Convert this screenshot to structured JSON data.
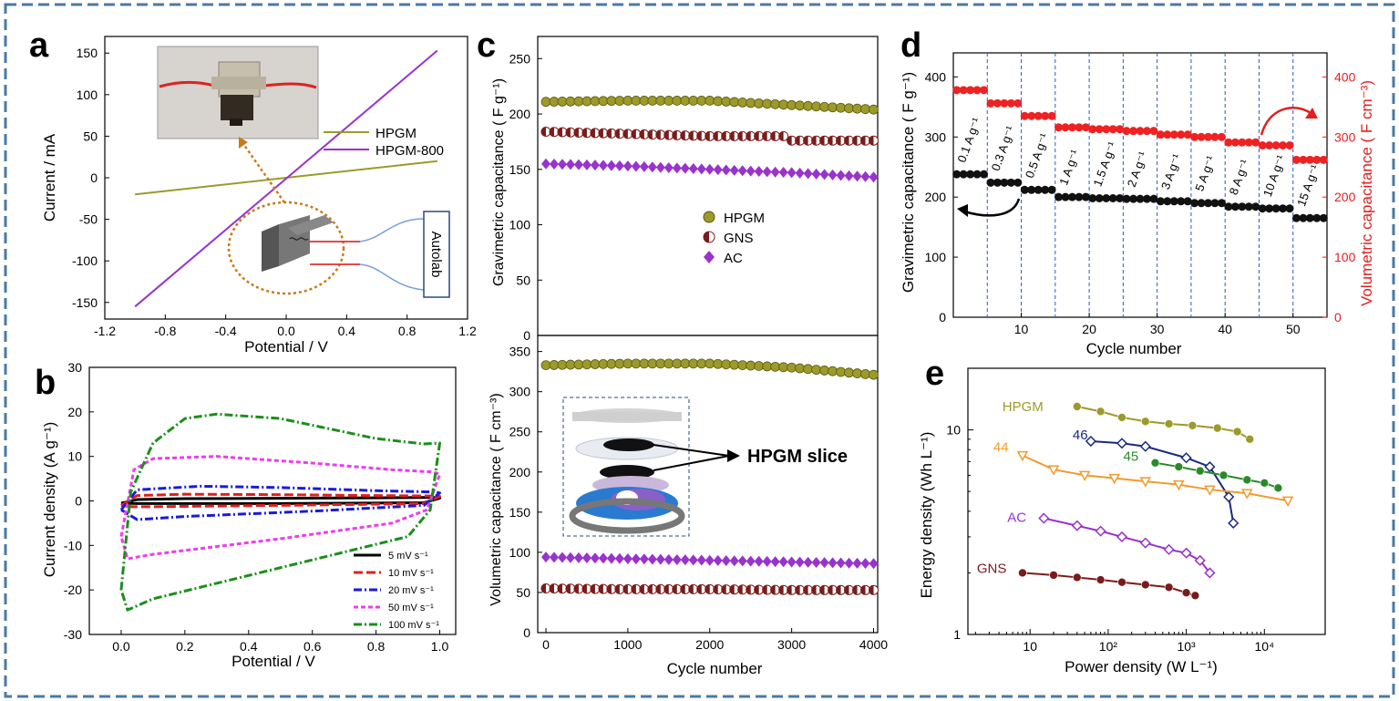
{
  "panel_letters": [
    "a",
    "b",
    "c",
    "d",
    "e"
  ],
  "colors": {
    "frame": "#4a7aa3",
    "olive": "#9c9a2a",
    "purple": "#9933cc",
    "darkred": "#7a1c1c",
    "black": "#000000",
    "red": "#e02020",
    "blue": "#1a1adb",
    "magenta": "#ee3cee",
    "green": "#1a8f1a",
    "navy": "#1a2a7a",
    "orange": "#f19a2e",
    "green_e": "#2a8a2a",
    "brown": "#7a1a1a"
  },
  "panel_a": {
    "photo_description": "photo of a press-cell clip holder with red wires",
    "schematic_label": "Autolab",
    "chart_data": {
      "type": "line",
      "xlabel": "Potential / V",
      "ylabel": "Current / mA",
      "xlim": [
        -1.2,
        1.2
      ],
      "ylim": [
        -170,
        170
      ],
      "xticks": [
        "-1.2",
        "-0.8",
        "-0.4",
        "0.0",
        "0.4",
        "0.8",
        "1.2"
      ],
      "yticks": [
        "-150",
        "-100",
        "-50",
        "0",
        "50",
        "100",
        "150"
      ],
      "legend": [
        "HPGM",
        "HPGM-800"
      ],
      "series": [
        {
          "name": "HPGM",
          "x": [
            -1.0,
            1.0
          ],
          "y": [
            -20,
            20
          ]
        },
        {
          "name": "HPGM-800",
          "x": [
            -1.0,
            1.0
          ],
          "y": [
            -155,
            153
          ]
        }
      ]
    }
  },
  "panel_b": {
    "chart_data": {
      "type": "line",
      "xlabel": "Potential / V",
      "ylabel": "Current density (A g⁻¹)",
      "xlim": [
        -0.1,
        1.05
      ],
      "ylim": [
        -30,
        30
      ],
      "xticks": [
        "0.0",
        "0.2",
        "0.4",
        "0.6",
        "0.8",
        "1.0"
      ],
      "yticks": [
        "-30",
        "-20",
        "-10",
        "0",
        "10",
        "20",
        "30"
      ],
      "legend": [
        "5 mV s⁻¹",
        "10 mV s⁻¹",
        "20 mV s⁻¹",
        "50 mV s⁻¹",
        "100 mV s⁻¹"
      ],
      "series": [
        {
          "name": "5 mV s⁻¹",
          "upper_x": [
            0,
            0.05,
            0.2,
            0.5,
            0.8,
            0.98,
            1.0
          ],
          "upper_y": [
            -0.5,
            0.3,
            0.5,
            0.6,
            0.7,
            0.8,
            0.6
          ],
          "lower_x": [
            1.0,
            0.95,
            0.5,
            0.05,
            0
          ],
          "lower_y": [
            0.6,
            -0.4,
            -0.6,
            -0.6,
            -0.5
          ]
        },
        {
          "name": "10 mV s⁻¹",
          "upper_x": [
            0,
            0.05,
            0.2,
            0.5,
            0.8,
            0.98,
            1.0
          ],
          "upper_y": [
            -1,
            1.2,
            1.5,
            1.4,
            1.2,
            1.1,
            1.0
          ],
          "lower_x": [
            1.0,
            0.95,
            0.5,
            0.1,
            0.02,
            0
          ],
          "lower_y": [
            1.0,
            -0.6,
            -1.0,
            -1.3,
            -1.3,
            -1
          ]
        },
        {
          "name": "20 mV s⁻¹",
          "upper_x": [
            0,
            0.05,
            0.25,
            0.5,
            0.8,
            0.98,
            1.0
          ],
          "upper_y": [
            -2,
            2.5,
            3.3,
            3,
            2.3,
            2,
            1.8
          ],
          "lower_x": [
            1.0,
            0.95,
            0.6,
            0.2,
            0.05,
            0
          ],
          "lower_y": [
            1.8,
            -1,
            -2.3,
            -3.5,
            -4.2,
            -2
          ]
        },
        {
          "name": "50 mV s⁻¹",
          "upper_x": [
            0,
            0.04,
            0.1,
            0.3,
            0.6,
            0.85,
            0.98,
            1.0
          ],
          "upper_y": [
            -8,
            7,
            9.5,
            10,
            8.5,
            7,
            6.5,
            6
          ],
          "lower_x": [
            1.0,
            0.96,
            0.85,
            0.5,
            0.1,
            0.02,
            0
          ],
          "lower_y": [
            6,
            -2,
            -5,
            -8.5,
            -12,
            -13,
            -8
          ]
        },
        {
          "name": "100 mV s⁻¹",
          "upper_x": [
            0,
            0.03,
            0.1,
            0.2,
            0.3,
            0.5,
            0.8,
            0.95,
            1.0
          ],
          "upper_y": [
            -20,
            2,
            13,
            18.5,
            19.5,
            18.5,
            14,
            12.8,
            13
          ],
          "lower_x": [
            1.0,
            0.97,
            0.9,
            0.5,
            0.1,
            0.02,
            0
          ],
          "lower_y": [
            13,
            -2,
            -8,
            -15,
            -22,
            -24.5,
            -20
          ]
        }
      ]
    }
  },
  "panel_c": {
    "annotation": "HPGM slice",
    "top": {
      "chart_data": {
        "type": "scatter",
        "ylabel": "Gravimetric capacitance ( F g⁻¹)",
        "ylim": [
          0,
          270
        ],
        "yticks": [
          "0",
          "50",
          "100",
          "150",
          "200",
          "250"
        ],
        "legend": [
          "HPGM",
          "GNS",
          "AC"
        ],
        "series": [
          {
            "name": "HPGM",
            "values_at_cycles": [
              [
                0,
                211
              ],
              [
                1000,
                212
              ],
              [
                2000,
                212
              ],
              [
                3000,
                208
              ],
              [
                4000,
                204
              ]
            ]
          },
          {
            "name": "GNS",
            "values_at_cycles": [
              [
                0,
                184
              ],
              [
                1000,
                182
              ],
              [
                2000,
                180
              ],
              [
                2900,
                180
              ],
              [
                3000,
                176
              ],
              [
                4000,
                176
              ]
            ]
          },
          {
            "name": "AC",
            "values_at_cycles": [
              [
                0,
                155
              ],
              [
                1000,
                153
              ],
              [
                2000,
                150
              ],
              [
                3000,
                147
              ],
              [
                4000,
                143
              ]
            ]
          }
        ]
      }
    },
    "bottom": {
      "chart_data": {
        "type": "scatter",
        "xlabel": "Cycle number",
        "ylabel": "Volumetric capacitance ( F cm⁻³)",
        "xlim": [
          -100,
          4050
        ],
        "ylim": [
          0,
          370
        ],
        "xticks": [
          "0",
          "1000",
          "2000",
          "3000",
          "4000"
        ],
        "yticks": [
          "0",
          "50",
          "100",
          "150",
          "200",
          "250",
          "300",
          "350"
        ],
        "series": [
          {
            "name": "HPGM",
            "values_at_cycles": [
              [
                0,
                333
              ],
              [
                1000,
                335
              ],
              [
                2000,
                335
              ],
              [
                3000,
                330
              ],
              [
                4000,
                321
              ]
            ]
          },
          {
            "name": "AC",
            "values_at_cycles": [
              [
                0,
                94
              ],
              [
                1000,
                92
              ],
              [
                2000,
                90
              ],
              [
                3000,
                88
              ],
              [
                4000,
                86
              ]
            ]
          },
          {
            "name": "GNS",
            "values_at_cycles": [
              [
                0,
                55
              ],
              [
                1000,
                54
              ],
              [
                2000,
                54
              ],
              [
                3000,
                53
              ],
              [
                4000,
                53
              ]
            ]
          }
        ]
      }
    }
  },
  "panel_d": {
    "chart_data": {
      "type": "scatter",
      "xlabel": "Cycle number",
      "ylabel": "Gravimetric capacitance ( F g⁻¹)",
      "y2label": "Volumetric capacitance ( F cm⁻³)",
      "xlim": [
        0,
        55
      ],
      "ylim": [
        0,
        440
      ],
      "y2lim": [
        0,
        440
      ],
      "xticks": [
        "10",
        "20",
        "30",
        "40",
        "50"
      ],
      "yticks": [
        "0",
        "100",
        "200",
        "300",
        "400"
      ],
      "y2ticks": [
        "0",
        "100",
        "200",
        "300",
        "400"
      ],
      "segment_labels": [
        "0.1 A g⁻¹",
        "0.3 A g⁻¹",
        "0.5 A g⁻¹",
        "1 A g⁻¹",
        "1.5 A g⁻¹",
        "2 A g⁻¹",
        "3 A g⁻¹",
        "5 A g⁻¹",
        "8 A g⁻¹",
        "10 A g⁻¹",
        "15 A g⁻¹"
      ],
      "series": [
        {
          "name": "Gravimetric",
          "segment_values": [
            238,
            224,
            212,
            200,
            198,
            197,
            193,
            190,
            184,
            181,
            165
          ]
        },
        {
          "name": "Volumetric",
          "segment_values": [
            378,
            356,
            335,
            316,
            313,
            310,
            304,
            300,
            291,
            286,
            262
          ]
        }
      ]
    }
  },
  "panel_e": {
    "chart_data": {
      "type": "line",
      "xlabel": "Power density (W L⁻¹)",
      "ylabel": "Energy density (Wh L⁻¹)",
      "log_x": true,
      "log_y": true,
      "xlim": [
        1.6,
        60000
      ],
      "ylim": [
        1,
        20
      ],
      "xticks": [
        "10",
        "10²",
        "10³",
        "10⁴"
      ],
      "yticks": [
        "1",
        "10"
      ],
      "series": [
        {
          "name": "HPGM",
          "x": [
            40,
            80,
            150,
            300,
            600,
            1200,
            2500,
            4500,
            6500
          ],
          "y": [
            13,
            12.3,
            11.5,
            11,
            10.7,
            10.5,
            10.2,
            9.8,
            9.0
          ]
        },
        {
          "name": "46",
          "x": [
            60,
            150,
            300,
            1000,
            2000,
            3500,
            4000
          ],
          "y": [
            8.8,
            8.6,
            8.3,
            7.3,
            6.6,
            4.7,
            3.5
          ]
        },
        {
          "name": "45",
          "x": [
            400,
            800,
            1500,
            3000,
            6000,
            10000,
            15000
          ],
          "y": [
            6.9,
            6.6,
            6.3,
            6.0,
            5.7,
            5.5,
            5.2
          ]
        },
        {
          "name": "44",
          "x": [
            8,
            20,
            50,
            120,
            300,
            800,
            2000,
            6000,
            20000
          ],
          "y": [
            7.5,
            6.4,
            6.0,
            5.8,
            5.6,
            5.4,
            5.1,
            4.9,
            4.5
          ]
        },
        {
          "name": "AC",
          "x": [
            15,
            40,
            80,
            150,
            300,
            600,
            1000,
            1500,
            2000
          ],
          "y": [
            3.7,
            3.4,
            3.2,
            3.0,
            2.8,
            2.6,
            2.5,
            2.3,
            2.0
          ]
        },
        {
          "name": "GNS",
          "x": [
            8,
            20,
            40,
            80,
            150,
            300,
            600,
            1000,
            1300
          ],
          "y": [
            2.0,
            1.95,
            1.9,
            1.85,
            1.8,
            1.75,
            1.7,
            1.6,
            1.55
          ]
        }
      ]
    }
  }
}
